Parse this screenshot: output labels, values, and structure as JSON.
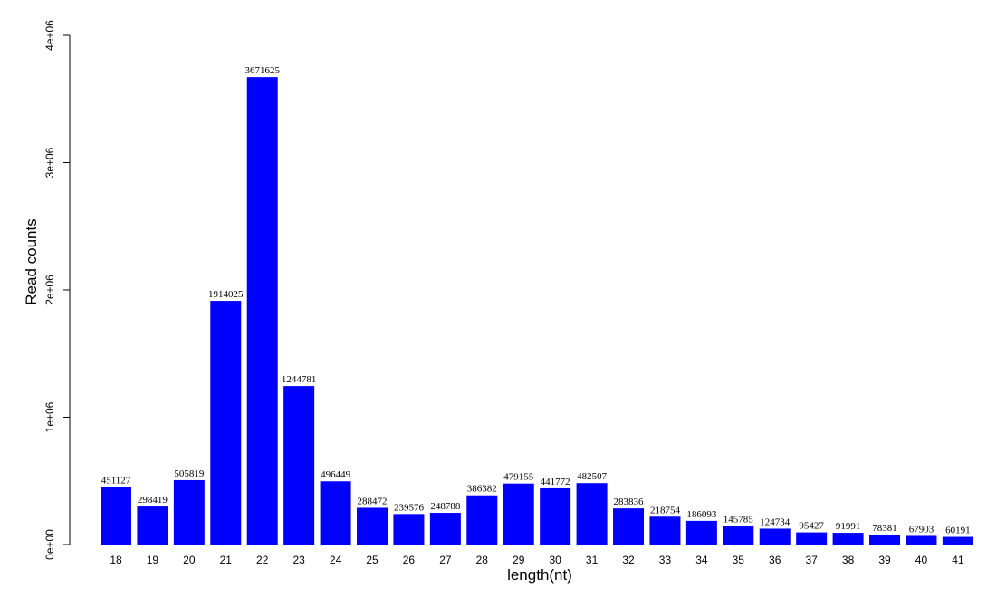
{
  "chart_data": {
    "type": "bar",
    "title": "",
    "xlabel": "length(nt)",
    "ylabel": "Read counts",
    "ylim": [
      0,
      4000000
    ],
    "yticks": [
      0,
      1000000,
      2000000,
      3000000,
      4000000
    ],
    "ytick_labels": [
      "0e+00",
      "1e+06",
      "2e+06",
      "3e+06",
      "4e+06"
    ],
    "categories": [
      "18",
      "19",
      "20",
      "21",
      "22",
      "23",
      "24",
      "25",
      "26",
      "27",
      "28",
      "29",
      "30",
      "31",
      "32",
      "33",
      "34",
      "35",
      "36",
      "37",
      "38",
      "39",
      "40",
      "41"
    ],
    "values": [
      451127,
      298419,
      505819,
      1914025,
      3671625,
      1244781,
      496449,
      288472,
      239576,
      248788,
      386382,
      479155,
      441772,
      482507,
      283836,
      218754,
      186093,
      145785,
      124734,
      95427,
      91991,
      78381,
      67903,
      60191
    ],
    "value_labels": [
      "451127",
      "298419",
      "505819",
      "1914025",
      "3671625",
      "1244781",
      "496449",
      "288472",
      "239576",
      "248788",
      "386382",
      "479155",
      "441772",
      "482507",
      "283836",
      "218754",
      "186093",
      "145785",
      "124734",
      "95427",
      "91991",
      "78381",
      "67903",
      "60191"
    ],
    "bar_color": "#0000ff",
    "grid": false,
    "legend": "none"
  }
}
